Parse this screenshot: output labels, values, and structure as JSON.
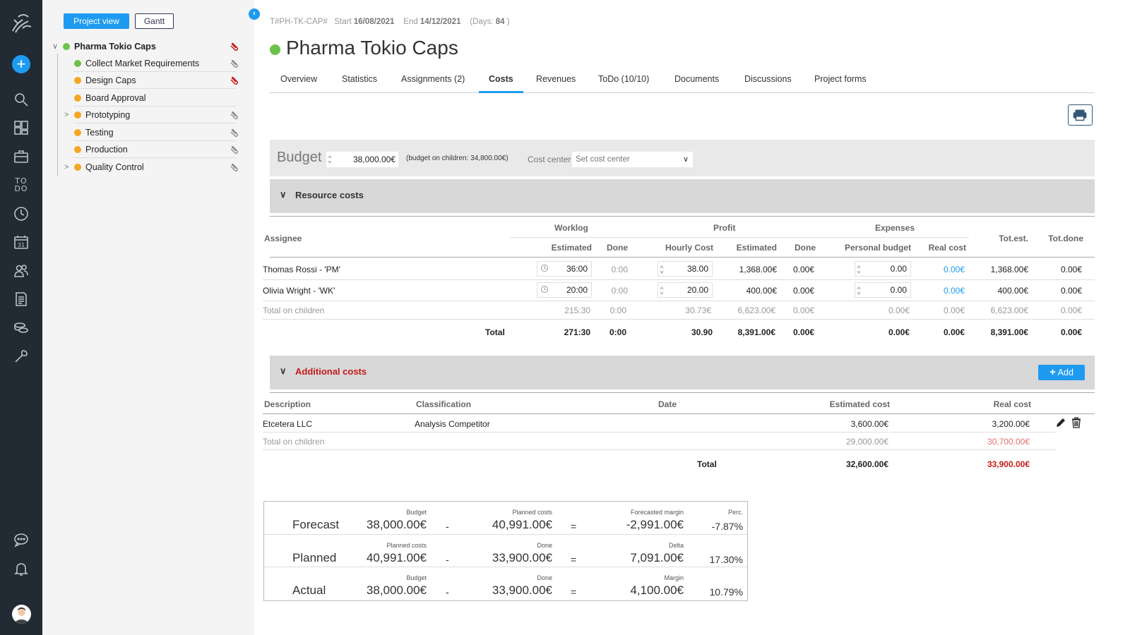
{
  "nav": {
    "todo_label": "TO DO"
  },
  "tree": {
    "project_view_label": "Project view",
    "gantt_label": "Gantt",
    "items": [
      {
        "label": "Pharma Tokio Caps",
        "status": "green",
        "bold": true
      },
      {
        "label": "Collect Market Requirements",
        "status": "green"
      },
      {
        "label": "Design Caps",
        "status": "orange"
      },
      {
        "label": "Board Approval",
        "status": "orange"
      },
      {
        "label": "Prototyping",
        "status": "orange"
      },
      {
        "label": "Testing",
        "status": "orange"
      },
      {
        "label": "Production",
        "status": "orange"
      },
      {
        "label": "Quality Control",
        "status": "orange"
      }
    ]
  },
  "header": {
    "code": "T#PH-TK-CAP#",
    "start_label": "Start",
    "start_date": "16/08/2021",
    "end_label": "End",
    "end_date": "14/12/2021",
    "days_label": "(Days:",
    "days": "84",
    "days_close": ")",
    "title": "Pharma Tokio Caps"
  },
  "tabs": [
    "Overview",
    "Statistics",
    "Assignments (2)",
    "Costs",
    "Revenues",
    "ToDo (10/10)",
    "Documents",
    "Discussions",
    "Project forms"
  ],
  "active_tab": "Costs",
  "budget": {
    "label": "Budget",
    "value": "38,000.00€",
    "children_note": "(budget on children: 34,800.00€)",
    "cost_center_label": "Cost center",
    "cost_center_placeholder": "Set cost center"
  },
  "resource_costs": {
    "title": "Resource costs",
    "group_headers": {
      "worklog": "Worklog",
      "profit": "Profit",
      "expenses": "Expenses"
    },
    "headers": {
      "assignee": "Assignee",
      "estimated": "Estimated",
      "done": "Done",
      "hourly_cost": "Hourly Cost",
      "profit_estimated": "Estimated",
      "profit_done": "Done",
      "personal_budget": "Personal budget",
      "real_cost": "Real cost",
      "tot_est": "Tot.est.",
      "tot_done": "Tot.done"
    },
    "rows": [
      {
        "assignee": "Thomas Rossi - 'PM'",
        "estimated": "36:00",
        "done": "0:00",
        "hourly_cost": "38.00",
        "profit_est": "1,368.00€",
        "profit_done": "0.00€",
        "personal_budget": "0.00",
        "real_cost": "0.00€",
        "tot_est": "1,368.00€",
        "tot_done": "0.00€"
      },
      {
        "assignee": "Olivia Wright - 'WK'",
        "estimated": "20:00",
        "done": "0:00",
        "hourly_cost": "20.00",
        "profit_est": "400.00€",
        "profit_done": "0.00€",
        "personal_budget": "0.00",
        "real_cost": "0.00€",
        "tot_est": "400.00€",
        "tot_done": "0.00€"
      }
    ],
    "children": {
      "label": "Total on children",
      "estimated": "215:30",
      "done": "0:00",
      "hourly_cost": "30.73€",
      "profit_est": "6,623.00€",
      "profit_done": "0.00€",
      "personal_budget": "0.00€",
      "real_cost": "0.00€",
      "tot_est": "6,623.00€",
      "tot_done": "0.00€"
    },
    "total": {
      "label": "Total",
      "estimated": "271:30",
      "done": "0:00",
      "hourly_cost": "30.90",
      "profit_est": "8,391.00€",
      "profit_done": "0.00€",
      "personal_budget": "0.00€",
      "real_cost": "0.00€",
      "tot_est": "8,391.00€",
      "tot_done": "0.00€"
    }
  },
  "additional_costs": {
    "title": "Additional costs",
    "add_label": "Add",
    "headers": {
      "description": "Description",
      "classification": "Classification",
      "date": "Date",
      "estimated": "Estimated cost",
      "real": "Real cost"
    },
    "rows": [
      {
        "description": "Etcetera LLC",
        "classification": "Analysis Competitor",
        "date": "",
        "estimated": "3,600.00€",
        "real": "3,200.00€"
      }
    ],
    "children": {
      "label": "Total on children",
      "estimated": "29,000.00€",
      "real": "30,700.00€"
    },
    "total": {
      "label": "Total",
      "estimated": "32,600.00€",
      "real": "33,900.00€"
    }
  },
  "summary": [
    {
      "label": "Forecast",
      "a_label": "Budget",
      "a": "38,000.00€",
      "b_label": "Planned costs",
      "b": "40,991.00€",
      "c_label": "Forecasted margin",
      "c": "-2,991.00€",
      "p_label": "Perc.",
      "p": "-7.87%"
    },
    {
      "label": "Planned",
      "a_label": "Planned costs",
      "a": "40,991.00€",
      "b_label": "Done",
      "b": "33,900.00€",
      "c_label": "Delta",
      "c": "7,091.00€",
      "p_label": "",
      "p": "17.30%"
    },
    {
      "label": "Actual",
      "a_label": "Budget",
      "a": "38,000.00€",
      "b_label": "Done",
      "b": "33,900.00€",
      "c_label": "Margin",
      "c": "4,100.00€",
      "p_label": "",
      "p": "10.79%"
    }
  ],
  "operators": {
    "minus": "-",
    "equals": "="
  },
  "colors": {
    "accent": "#1e9bf0",
    "green": "#6cc24a",
    "orange": "#f5a623",
    "negative": "#c41a1a",
    "sidebar": "#222b33"
  }
}
